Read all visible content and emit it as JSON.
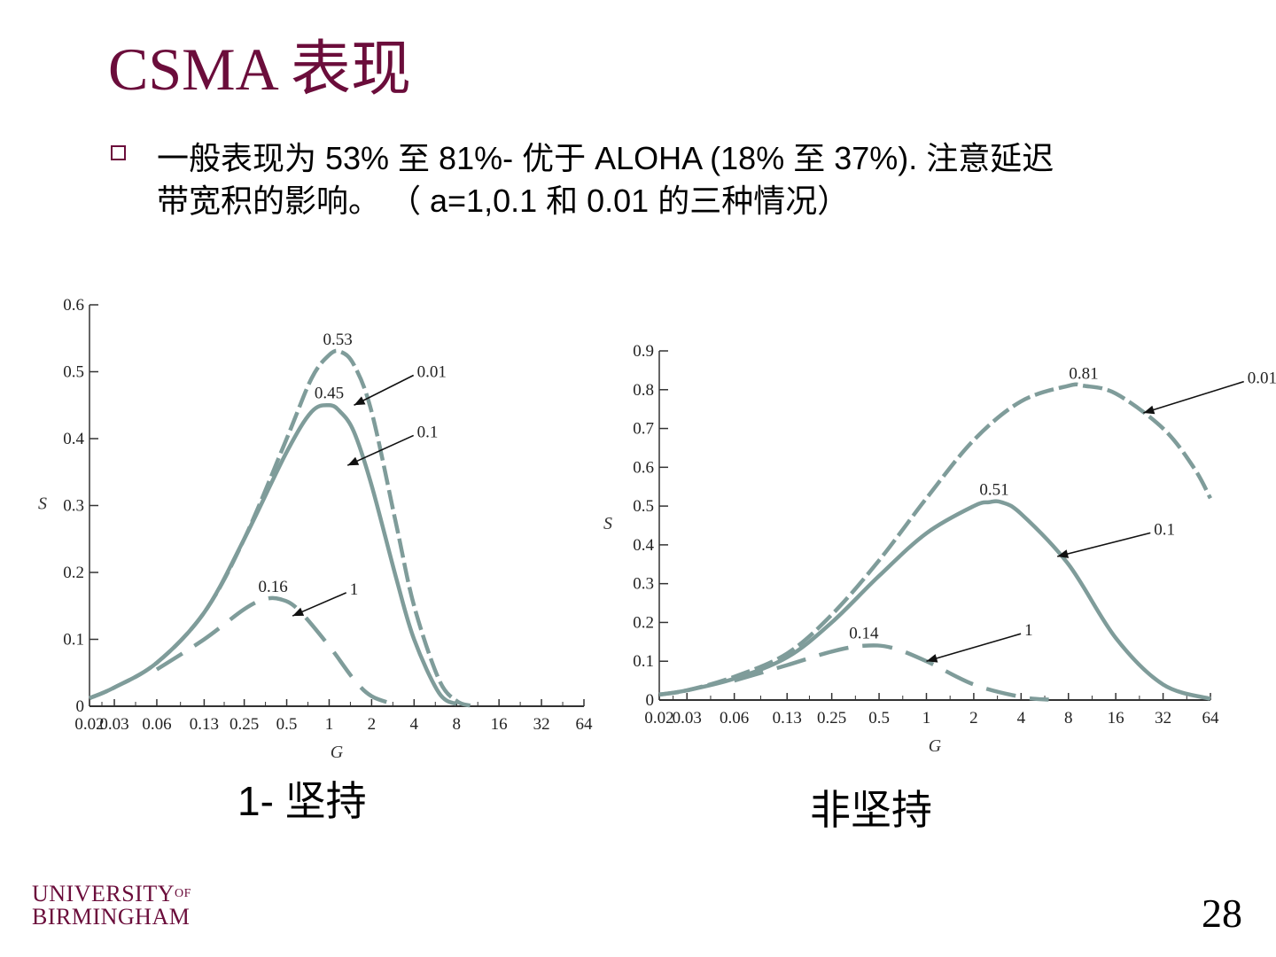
{
  "slide": {
    "title": "CSMA  表现",
    "bullet_line1": "一般表现为 53% 至 81%-  优于 ALOHA (18% 至 37%). 注意延迟",
    "bullet_line2": "带宽积的影响。 （   a=1,0.1 和 0.01 的三种情况）",
    "caption_left": "1- 坚持",
    "caption_right": "非坚持",
    "logo_line1": "UNIVERSITY",
    "logo_of": "OF",
    "logo_line2": "BIRMINGHAM",
    "page_number": "28"
  },
  "colors": {
    "curve": "#7f9c9a",
    "axis": "#333333",
    "title": "#6b0d3b"
  },
  "chart_data": [
    {
      "type": "line",
      "subtitle": "1- 坚持",
      "xlabel": "G",
      "ylabel": "S",
      "xscale": "log2",
      "xlim": [
        0.02,
        64
      ],
      "ylim": [
        0,
        0.6
      ],
      "x_ticks": [
        0.02,
        0.03,
        0.06,
        0.13,
        0.25,
        0.5,
        1,
        2,
        4,
        8,
        16,
        32,
        64
      ],
      "x_tick_labels": [
        "0.02",
        "0.03",
        "0.06",
        "0.13",
        "0.25",
        "0.5",
        "1",
        "2",
        "4",
        "8",
        "16",
        "32",
        "64"
      ],
      "y_ticks": [
        0,
        0.1,
        0.2,
        0.3,
        0.4,
        0.5,
        0.6
      ],
      "y_tick_labels": [
        "0",
        "0.1",
        "0.2",
        "0.3",
        "0.4",
        "0.5",
        "0.6"
      ],
      "series": [
        {
          "name": "0.01",
          "style": "dashed-short",
          "x": [
            0.02,
            0.03,
            0.06,
            0.13,
            0.25,
            0.5,
            0.75,
            1,
            1.2,
            1.5,
            2,
            3,
            4,
            6,
            8,
            10
          ],
          "y": [
            0.012,
            0.028,
            0.065,
            0.14,
            0.25,
            0.4,
            0.49,
            0.525,
            0.53,
            0.51,
            0.44,
            0.27,
            0.15,
            0.04,
            0.008,
            0.001
          ]
        },
        {
          "name": "0.1",
          "style": "solid",
          "x": [
            0.02,
            0.03,
            0.06,
            0.13,
            0.25,
            0.5,
            0.75,
            1,
            1.2,
            1.5,
            2,
            3,
            4,
            6,
            8
          ],
          "y": [
            0.012,
            0.028,
            0.065,
            0.14,
            0.25,
            0.38,
            0.44,
            0.45,
            0.44,
            0.41,
            0.33,
            0.19,
            0.1,
            0.02,
            0.003
          ]
        },
        {
          "name": "1",
          "style": "dashed-long",
          "x": [
            0.06,
            0.13,
            0.25,
            0.35,
            0.45,
            0.6,
            1,
            1.5,
            2,
            3
          ],
          "y": [
            0.055,
            0.1,
            0.145,
            0.16,
            0.16,
            0.145,
            0.09,
            0.04,
            0.015,
            0.002
          ]
        }
      ],
      "annotations": [
        {
          "text": "0.53",
          "kind": "peak",
          "x": 1.15,
          "y": 0.53
        },
        {
          "text": "0.45",
          "kind": "peak",
          "x": 1,
          "y": 0.45
        },
        {
          "text": "0.16",
          "kind": "peak",
          "x": 0.4,
          "y": 0.16
        },
        {
          "text": "0.01",
          "kind": "arrow",
          "x": 1.5,
          "y": 0.45,
          "tx": 4.2,
          "ty": 0.5
        },
        {
          "text": "0.1",
          "kind": "arrow",
          "x": 1.35,
          "y": 0.36,
          "tx": 4.2,
          "ty": 0.41
        },
        {
          "text": "1",
          "kind": "arrow",
          "x": 0.55,
          "y": 0.135,
          "tx": 1.4,
          "ty": 0.175
        }
      ]
    },
    {
      "type": "line",
      "subtitle": "非坚持",
      "xlabel": "G",
      "ylabel": "S",
      "xscale": "log2",
      "xlim": [
        0.02,
        64
      ],
      "ylim": [
        0,
        0.9
      ],
      "x_ticks": [
        0.02,
        0.03,
        0.06,
        0.13,
        0.25,
        0.5,
        1,
        2,
        4,
        8,
        16,
        32,
        64
      ],
      "x_tick_labels": [
        "0.02",
        "0.03",
        "0.06",
        "0.13",
        "0.25",
        "0.5",
        "1",
        "2",
        "4",
        "8",
        "16",
        "32",
        "64"
      ],
      "y_ticks": [
        0,
        0.1,
        0.2,
        0.3,
        0.4,
        0.5,
        0.6,
        0.7,
        0.8,
        0.9
      ],
      "y_tick_labels": [
        "0",
        "0.1",
        "0.2",
        "0.3",
        "0.4",
        "0.5",
        "0.6",
        "0.7",
        "0.8",
        "0.9"
      ],
      "series": [
        {
          "name": "0.01",
          "style": "dashed-short",
          "x": [
            0.02,
            0.03,
            0.06,
            0.13,
            0.25,
            0.5,
            1,
            2,
            4,
            8,
            10,
            16,
            32,
            50,
            64
          ],
          "y": [
            0.014,
            0.025,
            0.06,
            0.12,
            0.22,
            0.36,
            0.52,
            0.67,
            0.77,
            0.81,
            0.81,
            0.79,
            0.7,
            0.6,
            0.52
          ]
        },
        {
          "name": "0.1",
          "style": "solid",
          "x": [
            0.02,
            0.03,
            0.06,
            0.13,
            0.25,
            0.5,
            1,
            2,
            2.5,
            3,
            4,
            8,
            16,
            32,
            64
          ],
          "y": [
            0.014,
            0.025,
            0.055,
            0.11,
            0.2,
            0.32,
            0.43,
            0.5,
            0.51,
            0.51,
            0.48,
            0.35,
            0.16,
            0.04,
            0.003
          ]
        },
        {
          "name": "1",
          "style": "dashed-long",
          "x": [
            0.06,
            0.13,
            0.25,
            0.4,
            0.6,
            1,
            2,
            4,
            6
          ],
          "y": [
            0.05,
            0.09,
            0.125,
            0.14,
            0.135,
            0.1,
            0.04,
            0.008,
            0.001
          ]
        }
      ],
      "annotations": [
        {
          "text": "0.81",
          "kind": "peak",
          "x": 10,
          "y": 0.81
        },
        {
          "text": "0.51",
          "kind": "peak",
          "x": 2.7,
          "y": 0.51
        },
        {
          "text": "0.14",
          "kind": "peak",
          "x": 0.4,
          "y": 0.14
        },
        {
          "text": "0.01",
          "kind": "arrow",
          "x": 24,
          "y": 0.74,
          "tx": 110,
          "ty": 0.83
        },
        {
          "text": "0.1",
          "kind": "arrow",
          "x": 6.8,
          "y": 0.37,
          "tx": 28,
          "ty": 0.44
        },
        {
          "text": "1",
          "kind": "arrow",
          "x": 1,
          "y": 0.1,
          "tx": 4.2,
          "ty": 0.18
        }
      ]
    }
  ]
}
